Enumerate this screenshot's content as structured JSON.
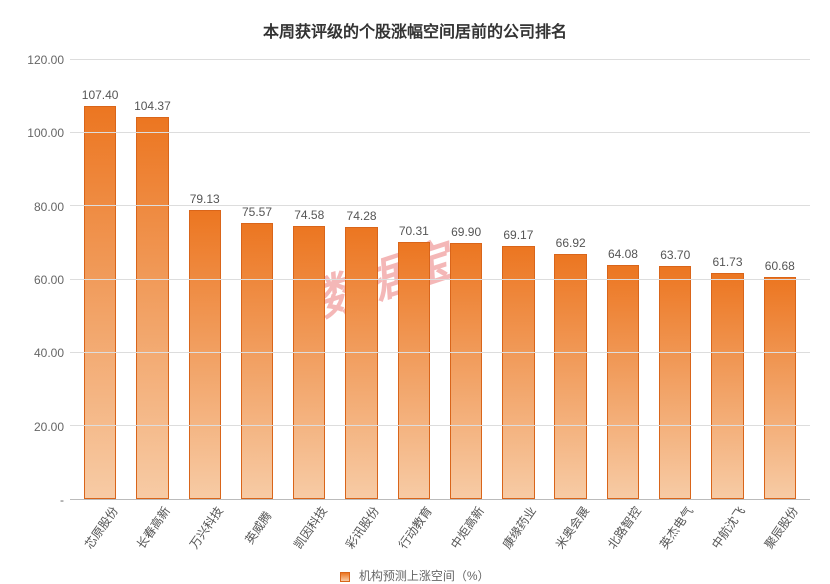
{
  "chart": {
    "type": "bar",
    "title": "本周获评级的个股涨幅空间居前的公司排名",
    "title_fontsize": 16,
    "title_color": "#333333",
    "ylim": [
      0,
      120
    ],
    "yticks": [
      0,
      20,
      40,
      60,
      80,
      100,
      120
    ],
    "ytick_labels": [
      "-",
      "20.00",
      "40.00",
      "60.00",
      "80.00",
      "100.00",
      "120.00"
    ],
    "ytick_fontsize": 12,
    "ytick_color": "#666666",
    "grid_color": "#dddddd",
    "axis_color": "#bbbbbb",
    "background_color": "#ffffff",
    "bar_gradient_top": "#ec7621",
    "bar_gradient_bottom": "#f7cba5",
    "bar_border": "#d9651a",
    "bar_width_ratio": 0.62,
    "value_label_fontsize": 12,
    "value_label_color": "#555555",
    "x_label_fontsize": 12,
    "x_label_color": "#555555",
    "x_label_rotation_deg": -55,
    "legend_label": "机构预测上涨空间（%）",
    "legend_fontsize": 12,
    "legend_color": "#666666",
    "watermark_text": "数据宝",
    "watermark_color": "#e03535",
    "watermark_fontsize": 46,
    "categories": [
      "芯原股份",
      "长春高新",
      "万兴科技",
      "英威腾",
      "凯因科技",
      "彩讯股份",
      "行动教育",
      "中炬高新",
      "康缘药业",
      "米奥会展",
      "北路智控",
      "英杰电气",
      "中航沈飞",
      "聚辰股份"
    ],
    "values": [
      107.4,
      104.37,
      79.13,
      75.57,
      74.58,
      74.28,
      70.31,
      69.9,
      69.17,
      66.92,
      64.08,
      63.7,
      61.73,
      60.68
    ],
    "value_labels": [
      "107.40",
      "104.37",
      "79.13",
      "75.57",
      "74.58",
      "74.28",
      "70.31",
      "69.90",
      "69.17",
      "66.92",
      "64.08",
      "63.70",
      "61.73",
      "60.68"
    ]
  }
}
